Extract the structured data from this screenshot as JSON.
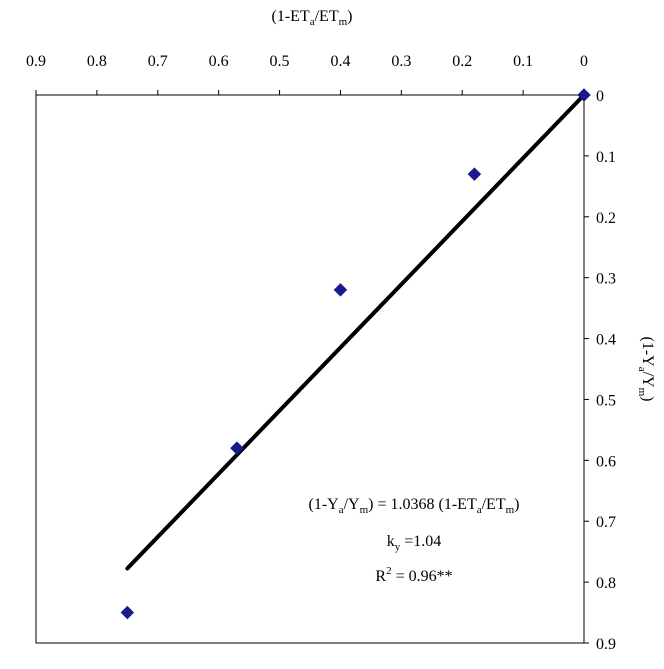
{
  "chart_data": {
    "type": "scatter",
    "title": "",
    "xlabel": {
      "base": "(1-ET",
      "sub1": "a",
      "mid": "/ET",
      "sub2": "m",
      "end": ")"
    },
    "ylabel": {
      "base": "(1-Y",
      "sub1": "a",
      "mid": "/Y",
      "sub2": "m",
      "end": ")"
    },
    "x_ticks": [
      "0.9",
      "0.8",
      "0.7",
      "0.6",
      "0.5",
      "0.4",
      "0.3",
      "0.2",
      "0.1",
      "0"
    ],
    "y_ticks": [
      "0",
      "0.1",
      "0.2",
      "0.3",
      "0.4",
      "0.5",
      "0.6",
      "0.7",
      "0.8",
      "0.9"
    ],
    "xlim": [
      0.9,
      0
    ],
    "ylim": [
      0,
      0.9
    ],
    "x_axis_position": "top",
    "y_axis_position": "right",
    "x_reversed": true,
    "y_reversed": true,
    "grid": false,
    "marker": "diamond",
    "marker_color": "#1a1a8c",
    "line_color": "#000000",
    "series": [
      {
        "x": [
          0,
          0.18,
          0.4,
          0.57,
          0.75
        ],
        "y": [
          0,
          0.13,
          0.32,
          0.58,
          0.85
        ]
      }
    ],
    "trendline": {
      "slope": 1.0368,
      "x_range": [
        0,
        0.75
      ]
    },
    "annotation": {
      "eq_line": {
        "a": "(1-Y",
        "a_sub1": "a",
        "a_mid": "/Y",
        "a_sub2": "m",
        "b": ") = 1.0368 (1-ET",
        "b_sub1": "a",
        "b_mid": "/ET",
        "b_sub2": "m",
        "c": ")"
      },
      "ky_line": {
        "k": "k",
        "k_sub": "y",
        "rest": " =1.04"
      },
      "r2_line": {
        "r": "R",
        "r_sup": "2",
        "rest": " = 0.96**"
      }
    }
  }
}
